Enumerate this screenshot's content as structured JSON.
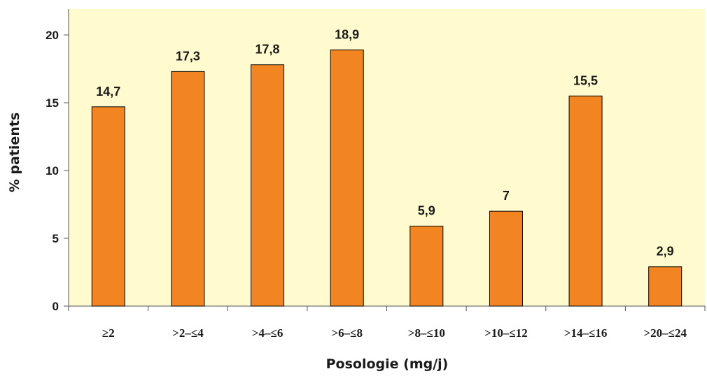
{
  "chart_data": {
    "type": "bar",
    "title": "",
    "xlabel": "Posologie (mg/j)",
    "ylabel": "% patients",
    "ylim": [
      0,
      20
    ],
    "yticks": [
      "0",
      "5",
      "10",
      "15",
      "20"
    ],
    "categories": [
      "≥2",
      ">2–≤4",
      ">4–≤6",
      ">6–≤8",
      ">8–≤10",
      ">10–≤12",
      ">14–≤16",
      ">20–≤24"
    ],
    "values": [
      14.7,
      17.3,
      17.8,
      18.9,
      5.9,
      7,
      15.5,
      2.9
    ],
    "data_labels": [
      "14,7",
      "17,3",
      "17,8",
      "18,9",
      "5,9",
      "7",
      "15,5",
      "2,9"
    ],
    "grid": false,
    "legend": "none",
    "colors": {
      "plot_background": "#FFFBCF",
      "bar_fill": "#F28522",
      "bar_stroke": "#000000"
    }
  }
}
